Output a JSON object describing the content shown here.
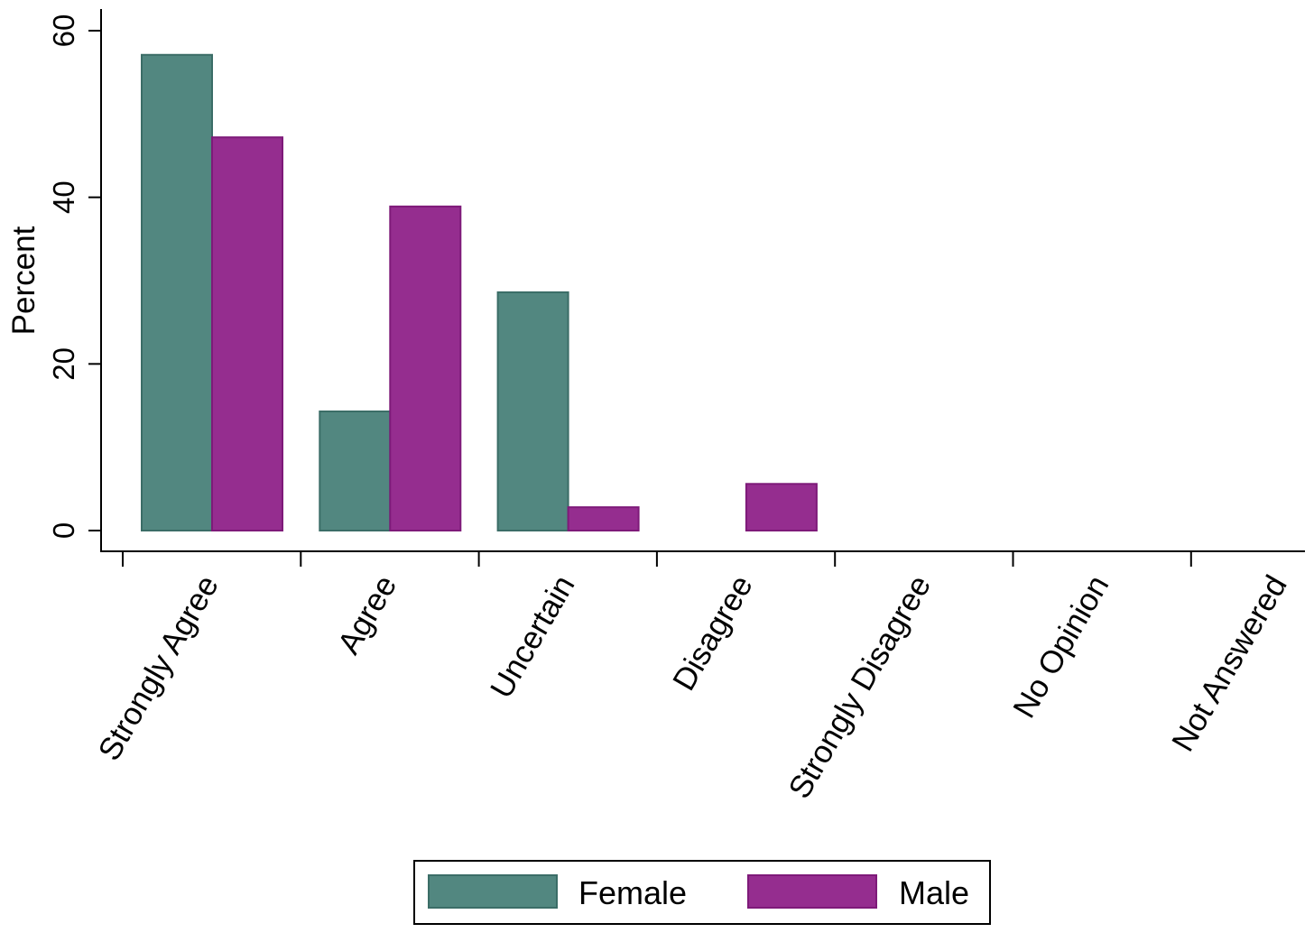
{
  "chart_data": {
    "type": "bar",
    "title": "",
    "xlabel": "",
    "ylabel": "Percent",
    "categories": [
      "Strongly Agree",
      "Agree",
      "Uncertain",
      "Disagree",
      "Strongly Disagree",
      "No Opinion",
      "Not Answered"
    ],
    "series": [
      {
        "name": "Female",
        "values": [
          57.1,
          14.3,
          28.6,
          0,
          0,
          0,
          0
        ]
      },
      {
        "name": "Male",
        "values": [
          47.2,
          38.9,
          2.8,
          5.6,
          0,
          0,
          0
        ]
      }
    ],
    "ylim": [
      0,
      60
    ],
    "yticks": [
      "0",
      "20",
      "40",
      "60"
    ],
    "legend_position": "bottom",
    "grid": false,
    "colors": {
      "Female": "#528780",
      "Male": "#952d8f"
    }
  }
}
